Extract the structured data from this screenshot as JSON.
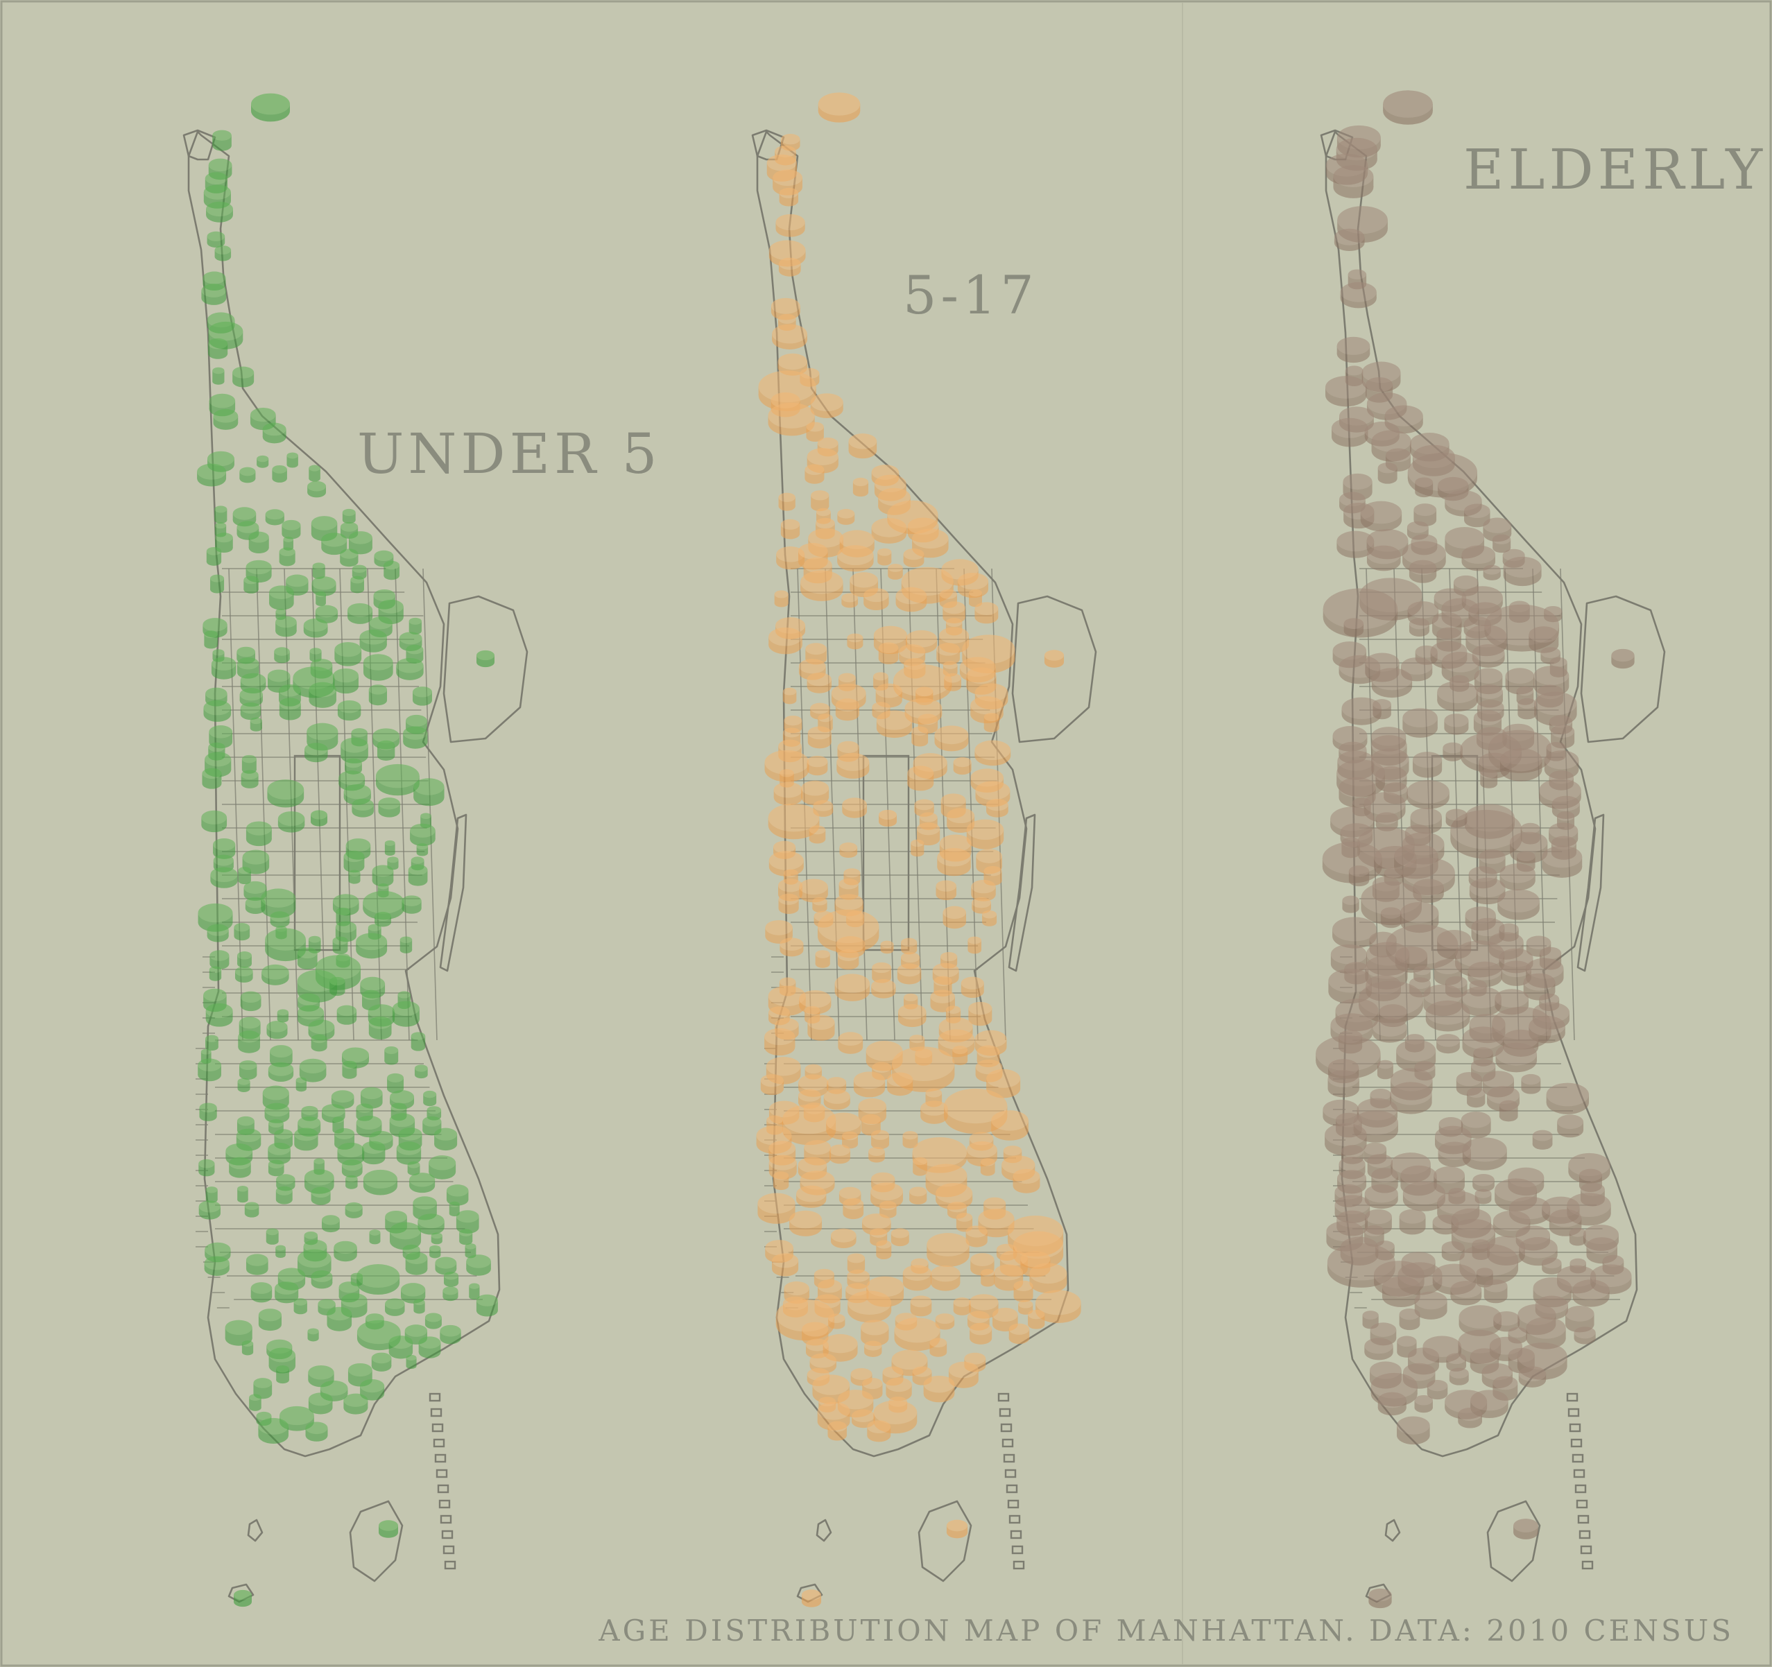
{
  "caption": "AGE DISTRIBUTION MAP OF MANHATTAN. DATA: 2010 CENSUS",
  "panels": [
    {
      "id": "under5",
      "title": "UNDER 5",
      "color": "#3f9b3c",
      "top_color": "#5fb256"
    },
    {
      "id": "age5to17",
      "title": "5-17",
      "color": "#eaa153",
      "top_color": "#f2b774"
    },
    {
      "id": "elderly",
      "title": "ELDERLY",
      "color": "#8c7565",
      "top_color": "#a08a7a"
    }
  ],
  "colors": {
    "background": "#c4c6b0",
    "outline": "#7c7c70",
    "text": "#8a8c7e"
  }
}
